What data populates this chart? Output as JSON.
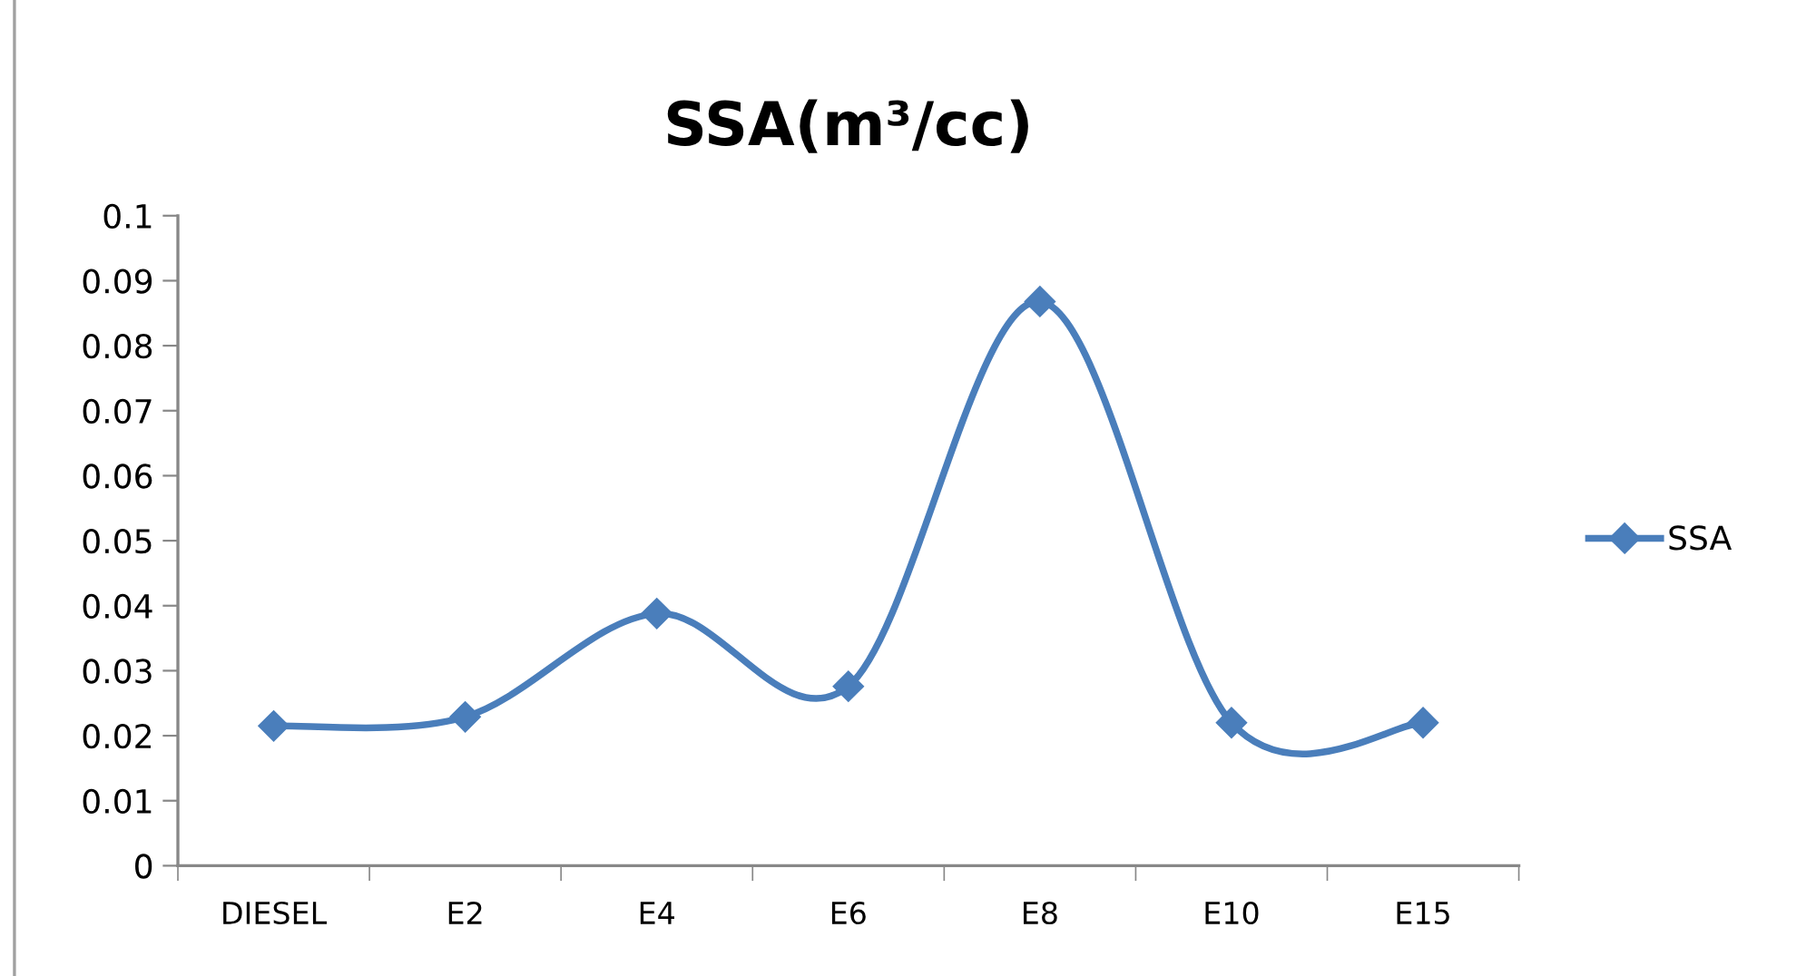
{
  "chart_data": {
    "type": "line",
    "title": "SSA(m³/cc)",
    "categories": [
      "DIESEL",
      "E2",
      "E4",
      "E6",
      "E8",
      "E10",
      "E15"
    ],
    "series": [
      {
        "name": "SSA",
        "color": "#4a7ebb",
        "values": [
          0.0215,
          0.0229,
          0.0388,
          0.0276,
          0.0868,
          0.022,
          0.022
        ]
      }
    ],
    "ylim": [
      0,
      0.1
    ],
    "yticks": [
      0,
      0.01,
      0.02,
      0.03,
      0.04,
      0.05,
      0.06,
      0.07,
      0.08,
      0.09,
      0.1
    ],
    "grid": false,
    "legend": "right",
    "marker": "diamond",
    "line_style": "solid"
  }
}
